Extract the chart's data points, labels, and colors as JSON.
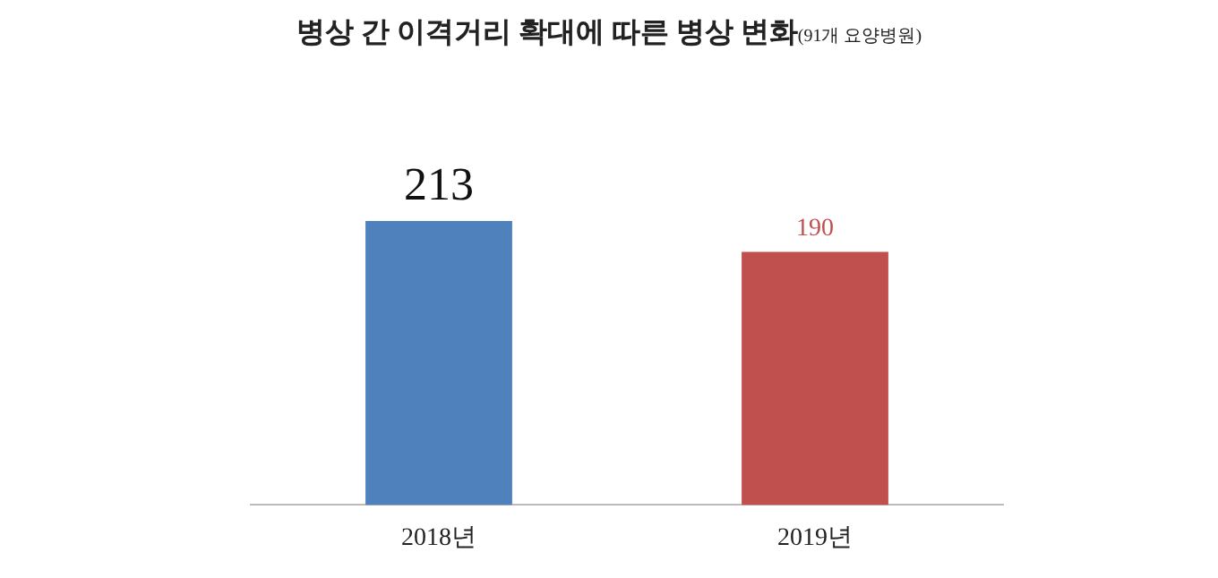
{
  "chart_data": {
    "type": "bar",
    "title": "병상 간 이격거리 확대에 따른 병상 변화",
    "subtitle": "(91개 요양병원)",
    "categories": [
      "2018년",
      "2019년"
    ],
    "values": [
      213,
      190
    ],
    "colors": [
      "#4f81bd",
      "#c0504d"
    ],
    "data_labels": true,
    "grid": false,
    "legend": false
  }
}
